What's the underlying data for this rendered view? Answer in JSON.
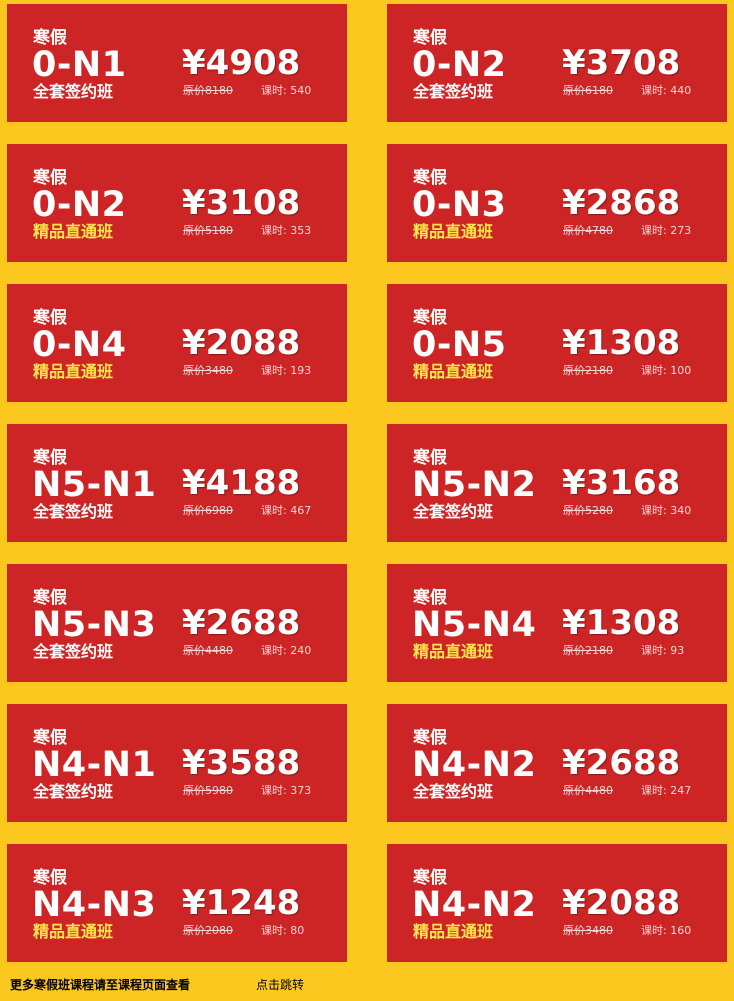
{
  "cards": [
    {
      "season": "寒假",
      "level": "0-N1",
      "type": "全套签约班",
      "price": "¥4908",
      "orig_label": "原价",
      "orig": "8180",
      "hours_label": "课时:",
      "hours": "540"
    },
    {
      "season": "寒假",
      "level": "0-N2",
      "type": "全套签约班",
      "price": "¥3708",
      "orig_label": "原价",
      "orig": "6180",
      "hours_label": "课时:",
      "hours": "440"
    },
    {
      "season": "寒假",
      "level": "0-N2",
      "type": "精品直通班",
      "price": "¥3108",
      "orig_label": "原价",
      "orig": "5180",
      "hours_label": "课时:",
      "hours": "353"
    },
    {
      "season": "寒假",
      "level": "0-N3",
      "type": "精品直通班",
      "price": "¥2868",
      "orig_label": "原价",
      "orig": "4780",
      "hours_label": "课时:",
      "hours": "273"
    },
    {
      "season": "寒假",
      "level": "0-N4",
      "type": "精品直通班",
      "price": "¥2088",
      "orig_label": "原价",
      "orig": "3480",
      "hours_label": "课时:",
      "hours": "193"
    },
    {
      "season": "寒假",
      "level": "0-N5",
      "type": "精品直通班",
      "price": "¥1308",
      "orig_label": "原价",
      "orig": "2180",
      "hours_label": "课时:",
      "hours": "100"
    },
    {
      "season": "寒假",
      "level": "N5-N1",
      "type": "全套签约班",
      "price": "¥4188",
      "orig_label": "原价",
      "orig": "6980",
      "hours_label": "课时:",
      "hours": "467"
    },
    {
      "season": "寒假",
      "level": "N5-N2",
      "type": "全套签约班",
      "price": "¥3168",
      "orig_label": "原价",
      "orig": "5280",
      "hours_label": "课时:",
      "hours": "340"
    },
    {
      "season": "寒假",
      "level": "N5-N3",
      "type": "全套签约班",
      "price": "¥2688",
      "orig_label": "原价",
      "orig": "4480",
      "hours_label": "课时:",
      "hours": "240"
    },
    {
      "season": "寒假",
      "level": "N5-N4",
      "type": "精品直通班",
      "price": "¥1308",
      "orig_label": "原价",
      "orig": "2180",
      "hours_label": "课时:",
      "hours": "93"
    },
    {
      "season": "寒假",
      "level": "N4-N1",
      "type": "全套签约班",
      "price": "¥3588",
      "orig_label": "原价",
      "orig": "5980",
      "hours_label": "课时:",
      "hours": "373"
    },
    {
      "season": "寒假",
      "level": "N4-N2",
      "type": "全套签约班",
      "price": "¥2688",
      "orig_label": "原价",
      "orig": "4480",
      "hours_label": "课时:",
      "hours": "247"
    },
    {
      "season": "寒假",
      "level": "N4-N3",
      "type": "精品直通班",
      "price": "¥1248",
      "orig_label": "原价",
      "orig": "2080",
      "hours_label": "课时:",
      "hours": "80"
    },
    {
      "season": "寒假",
      "level": "N4-N2",
      "type": "精品直通班",
      "price": "¥2088",
      "orig_label": "原价",
      "orig": "3480",
      "hours_label": "课时:",
      "hours": "160"
    }
  ],
  "footer": {
    "text": "更多寒假班课程请至课程页面查看",
    "link": "点击跳转"
  },
  "colors": {
    "background": "#fcc71f",
    "card": "#cd2525",
    "premium_type": "#ffe94a",
    "contract_type": "#ffffff"
  }
}
